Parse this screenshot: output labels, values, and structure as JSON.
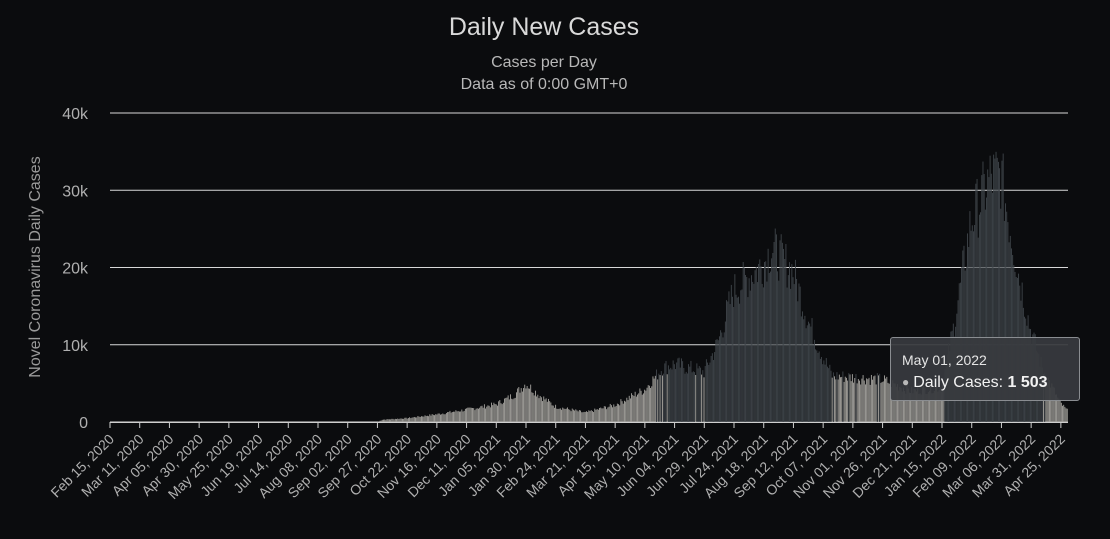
{
  "chart_data": {
    "type": "bar",
    "title": "Daily New Cases",
    "subtitle": "Cases per Day",
    "subtitle2": "Data as of 0:00 GMT+0",
    "ylabel": "Novel Coronavirus Daily Cases",
    "ylim": [
      0,
      40000
    ],
    "yticks": [
      "0",
      "10k",
      "20k",
      "30k",
      "40k"
    ],
    "x_tick_labels": [
      "Feb 15, 2020",
      "Mar 11, 2020",
      "Apr 05, 2020",
      "Apr 30, 2020",
      "May 25, 2020",
      "Jun 19, 2020",
      "Jul 14, 2020",
      "Aug 08, 2020",
      "Sep 02, 2020",
      "Sep 27, 2020",
      "Oct 22, 2020",
      "Nov 16, 2020",
      "Dec 11, 2020",
      "Jan 05, 2021",
      "Jan 30, 2021",
      "Feb 24, 2021",
      "Mar 21, 2021",
      "Apr 15, 2021",
      "May 10, 2021",
      "Jun 04, 2021",
      "Jun 29, 2021",
      "Jul 24, 2021",
      "Aug 18, 2021",
      "Sep 12, 2021",
      "Oct 07, 2021",
      "Nov 01, 2021",
      "Nov 26, 2021",
      "Dec 21, 2021",
      "Jan 15, 2022",
      "Feb 09, 2022",
      "Mar 06, 2022",
      "Mar 31, 2022",
      "Apr 25, 2022"
    ],
    "x_range": [
      "Feb 15, 2020",
      "May 01, 2022"
    ],
    "series": [
      {
        "name": "Daily Cases"
      }
    ],
    "approx_daily_values_by_date": [
      [
        "Feb 15, 2020",
        0
      ],
      [
        "Sep 27, 2020",
        0
      ],
      [
        "Oct 01, 2020",
        300
      ],
      [
        "Oct 22, 2020",
        500
      ],
      [
        "Nov 16, 2020",
        1000
      ],
      [
        "Dec 11, 2020",
        1600
      ],
      [
        "Jan 05, 2021",
        2300
      ],
      [
        "Jan 20, 2021",
        3500
      ],
      [
        "Jan 30, 2021",
        5000
      ],
      [
        "Feb 10, 2021",
        3500
      ],
      [
        "Feb 24, 2021",
        2000
      ],
      [
        "Mar 21, 2021",
        1200
      ],
      [
        "Apr 15, 2021",
        2200
      ],
      [
        "May 10, 2021",
        4200
      ],
      [
        "May 25, 2021",
        7000
      ],
      [
        "Jun 04, 2021",
        7500
      ],
      [
        "Jun 29, 2021",
        6500
      ],
      [
        "Jul 10, 2021",
        10000
      ],
      [
        "Jul 24, 2021",
        17000
      ],
      [
        "Aug 18, 2021",
        20500
      ],
      [
        "Aug 25, 2021",
        22500
      ],
      [
        "Sep 12, 2021",
        19500
      ],
      [
        "Sep 25, 2021",
        13000
      ],
      [
        "Oct 07, 2021",
        8500
      ],
      [
        "Oct 15, 2021",
        6000
      ],
      [
        "Nov 26, 2021",
        5500
      ],
      [
        "Dec 21, 2021",
        4000
      ],
      [
        "Jan 15, 2022",
        4500
      ],
      [
        "Jan 25, 2022",
        12000
      ],
      [
        "Feb 09, 2022",
        26000
      ],
      [
        "Feb 25, 2022",
        31500
      ],
      [
        "Mar 06, 2022",
        32000
      ],
      [
        "Mar 20, 2022",
        20000
      ],
      [
        "Mar 31, 2022",
        12000
      ],
      [
        "Apr 10, 2022",
        7000
      ],
      [
        "Apr 25, 2022",
        2500
      ],
      [
        "May 01, 2022",
        1503
      ]
    ],
    "grid": true,
    "bar_color_light": "#a8a6a1",
    "bar_color_dark": "#40464b"
  },
  "tooltip": {
    "date": "May 01, 2022",
    "series_label": "Daily Cases: ",
    "value": "1 503"
  },
  "colors": {
    "background": "#0b0c0e",
    "title": "#d9d9d9",
    "text": "#b0b0b0",
    "grid": "#d8d8d8"
  }
}
